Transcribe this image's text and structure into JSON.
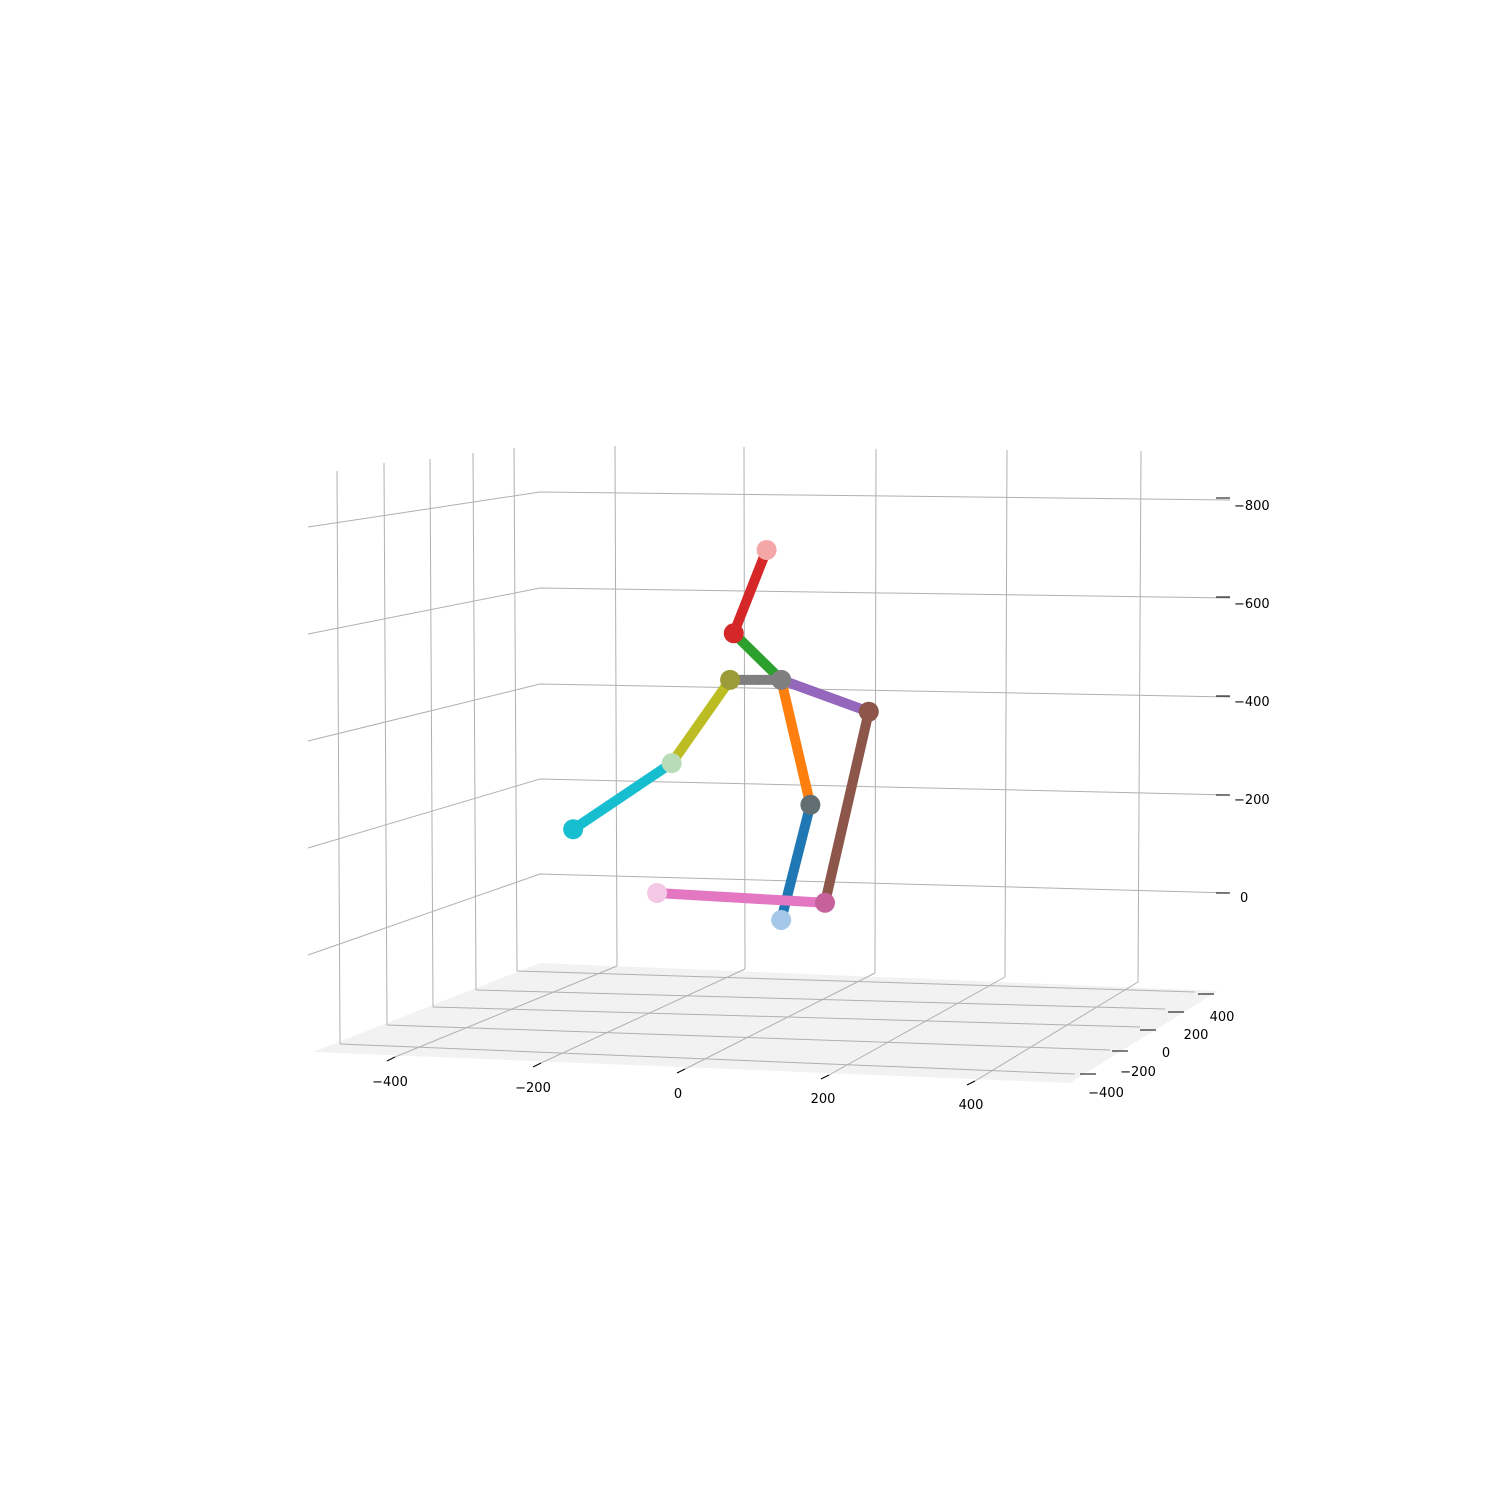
{
  "chart_data": {
    "type": "scatter",
    "subtype": "3d-pose-skeleton",
    "title": "",
    "xlabel": "",
    "ylabel": "",
    "zlabel": "",
    "xlim": [
      -500,
      500
    ],
    "ylim": [
      -500,
      500
    ],
    "zlim": [
      100,
      -900
    ],
    "grid": true,
    "x_ticks": [
      "−400",
      "−200",
      "0",
      "200",
      "400"
    ],
    "y_ticks": [
      "400",
      "200",
      "0",
      "−200",
      "−400"
    ],
    "z_ticks": [
      "−800",
      "−600",
      "−400",
      "−200",
      "0"
    ],
    "joints": [
      {
        "name": "head",
        "x": 120,
        "y": 0,
        "z": -700,
        "color": "#f4a7a7"
      },
      {
        "name": "neck",
        "x": 75,
        "y": 0,
        "z": -530,
        "color": "#d62728"
      },
      {
        "name": "shoulder-center",
        "x": 140,
        "y": 0,
        "z": -435,
        "color": "#7f7f7f"
      },
      {
        "name": "left-shoulder",
        "x": 70,
        "y": 0,
        "z": -435,
        "color": "#9b9b3a"
      },
      {
        "name": "left-elbow",
        "x": -10,
        "y": 0,
        "z": -265,
        "color": "#b7dcb7"
      },
      {
        "name": "left-hand",
        "x": -145,
        "y": 0,
        "z": -130,
        "color": "#17becf"
      },
      {
        "name": "right-shoulder",
        "x": 260,
        "y": 0,
        "z": -370,
        "color": "#8c564b"
      },
      {
        "name": "right-hand",
        "x": 200,
        "y": 0,
        "z": 20,
        "color": "#c6619b"
      },
      {
        "name": "right-knee",
        "x": 180,
        "y": 0,
        "z": -180,
        "color": "#636e72"
      },
      {
        "name": "right-foot",
        "x": 140,
        "y": 0,
        "z": 55,
        "color": "#a6c8e8"
      },
      {
        "name": "left-foot",
        "x": -30,
        "y": 0,
        "z": 0,
        "color": "#f4c7e4"
      }
    ],
    "bones": [
      {
        "from": "head",
        "to": "neck",
        "color": "#d62728"
      },
      {
        "from": "neck",
        "to": "shoulder-center",
        "color": "#2ca02c"
      },
      {
        "from": "shoulder-center",
        "to": "left-shoulder",
        "color": "#7f7f7f"
      },
      {
        "from": "left-shoulder",
        "to": "left-elbow",
        "color": "#bcbd22"
      },
      {
        "from": "left-elbow",
        "to": "left-hand",
        "color": "#17becf"
      },
      {
        "from": "shoulder-center",
        "to": "right-shoulder",
        "color": "#9467bd"
      },
      {
        "from": "right-shoulder",
        "to": "right-hand",
        "color": "#8c564b"
      },
      {
        "from": "shoulder-center",
        "to": "right-knee",
        "color": "#ff7f0e"
      },
      {
        "from": "right-knee",
        "to": "right-foot",
        "color": "#1f77b4"
      },
      {
        "from": "right-hand",
        "to": "left-foot",
        "color": "#e377c2"
      }
    ]
  }
}
